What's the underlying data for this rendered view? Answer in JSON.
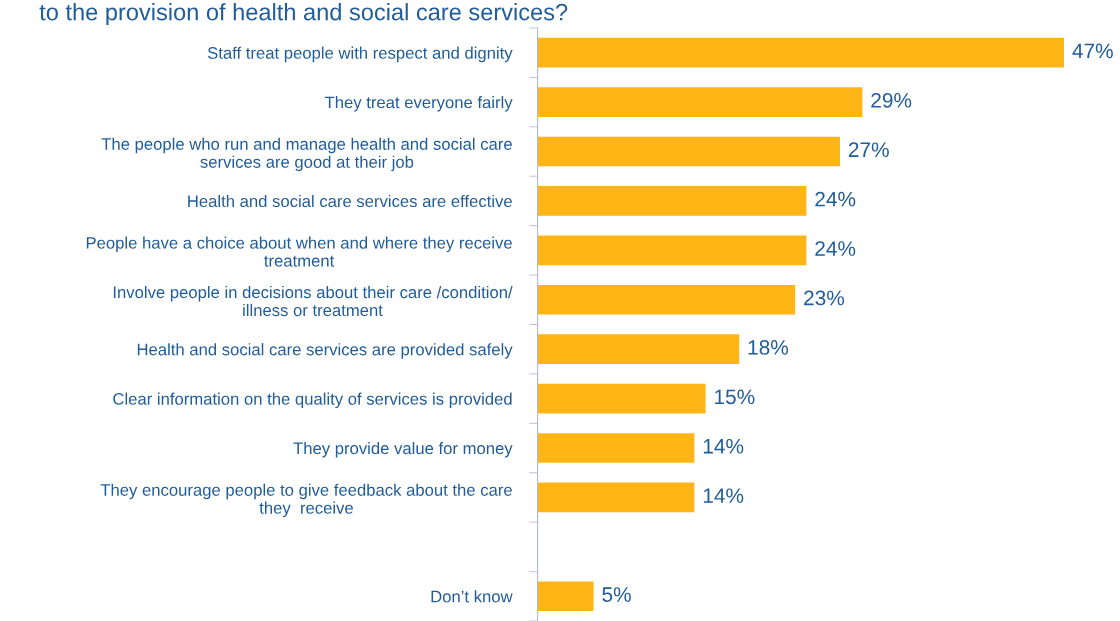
{
  "chart_data": {
    "type": "bar",
    "orientation": "horizontal",
    "title": "to the provision of health and social care services?",
    "categories": [
      "Staff treat people with respect and dignity",
      "They treat everyone fairly",
      "The people who run and manage health and social care\nservices are good at their job",
      "Health and social care services are effective",
      "People have a choice about when and where they receive\ntreatment",
      "Involve people in decisions about their care /condition/\nillness or treatment",
      "Health and social care services are provided safely",
      "Clear information on the quality of services is provided",
      "They provide value for money",
      "They encourage people to give feedback about the care\nthey  receive",
      null,
      "Don’t know"
    ],
    "values": [
      47,
      29,
      27,
      24,
      24,
      23,
      18,
      15,
      14,
      14,
      null,
      5
    ],
    "value_labels": [
      "47%",
      "29%",
      "27%",
      "24%",
      "24%",
      "23%",
      "18%",
      "15%",
      "14%",
      "14%",
      null,
      "5%"
    ],
    "color": "#ffb515",
    "grid": false,
    "legend": false,
    "tick_labels": "y"
  }
}
